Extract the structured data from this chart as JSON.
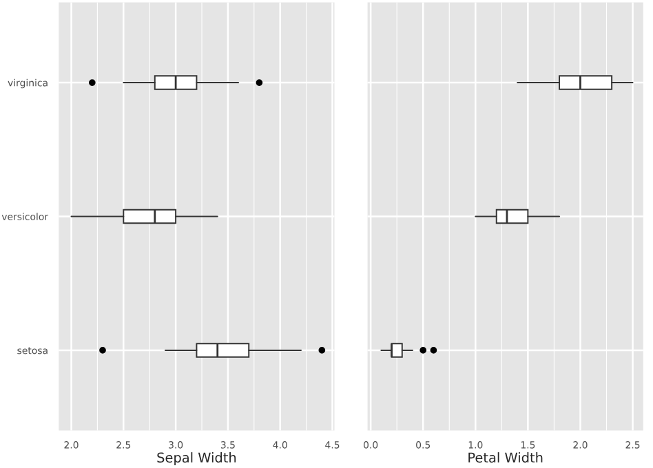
{
  "chart_data": [
    {
      "type": "box",
      "orientation": "horizontal",
      "xlabel": "Sepal Width",
      "categories": [
        "virginica",
        "versicolor",
        "setosa"
      ],
      "boxes": [
        {
          "low": 2.5,
          "q1": 2.8,
          "median": 3.0,
          "q3": 3.2,
          "high": 3.6,
          "outliers": [
            2.2,
            3.8
          ]
        },
        {
          "low": 2.0,
          "q1": 2.5,
          "median": 2.8,
          "q3": 3.0,
          "high": 3.4
        },
        {
          "low": 2.9,
          "q1": 3.2,
          "median": 3.4,
          "q3": 3.7,
          "high": 4.2,
          "outliers": [
            2.3,
            4.4
          ]
        }
      ],
      "xlim": [
        1.88,
        4.52
      ],
      "xticks": [
        {
          "value": 2,
          "label": "2.0"
        },
        2.5,
        {
          "value": 3,
          "label": "3.0"
        },
        3.5,
        {
          "value": 4,
          "label": "4.0"
        },
        4.5
      ],
      "grid": true
    },
    {
      "type": "box",
      "orientation": "horizontal",
      "xlabel": "Petal Width",
      "categories": [
        null,
        null,
        null
      ],
      "boxes": [
        {
          "low": 1.4,
          "q1": 1.8,
          "median": 2.0,
          "q3": 2.3,
          "high": 2.5
        },
        {
          "low": 1.0,
          "q1": 1.2,
          "median": 1.3,
          "q3": 1.5,
          "high": 1.8
        },
        {
          "low": 0.1,
          "q1": 0.2,
          "median": 0.2,
          "q3": 0.3,
          "high": 0.4,
          "outliers": [
            0.5,
            0.6
          ]
        }
      ],
      "xlim": [
        -0.03,
        2.6
      ],
      "xticks": [
        {
          "value": 0,
          "label": "0.0"
        },
        0.5,
        {
          "value": 1,
          "label": "1.0"
        },
        1.5,
        {
          "value": 2,
          "label": "2.0"
        },
        2.5
      ],
      "grid": true
    }
  ]
}
